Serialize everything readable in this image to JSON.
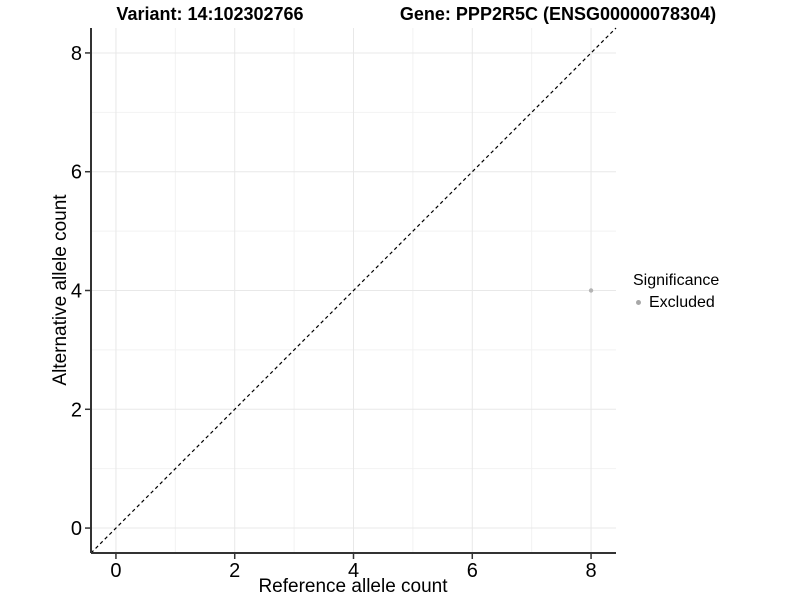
{
  "header": {
    "variant_title": "Variant: 14:102302766",
    "gene_title": "Gene: PPP2R5C (ENSG00000078304)"
  },
  "chart_data": {
    "type": "scatter",
    "xlabel": "Reference allele count",
    "ylabel": "Alternative allele count",
    "xlim": [
      -0.42,
      8.42
    ],
    "ylim": [
      -0.42,
      8.42
    ],
    "xticks": [
      0,
      2,
      4,
      6,
      8
    ],
    "yticks": [
      0,
      2,
      4,
      6,
      8
    ],
    "xminor": [
      1,
      3,
      5,
      7
    ],
    "yminor": [
      1,
      3,
      5,
      7
    ],
    "grid": "major+minor",
    "identity_line": {
      "slope": 1,
      "intercept": 0,
      "style": "dashed",
      "color": "#000000"
    },
    "points": [
      {
        "x": 8,
        "y": 4,
        "significance": "Excluded",
        "color": "#b4b4b4",
        "radius": 2.2
      }
    ],
    "legend": {
      "title": "Significance",
      "position": "right",
      "entries": [
        {
          "label": "Excluded",
          "color": "#a8a8a8"
        }
      ]
    }
  },
  "colors": {
    "background": "#ffffff",
    "grid_major": "#e8e8e8",
    "grid_minor": "#f2f2f2",
    "axis_line": "#333333",
    "tick_mark": "#333333",
    "text": "#000000"
  }
}
